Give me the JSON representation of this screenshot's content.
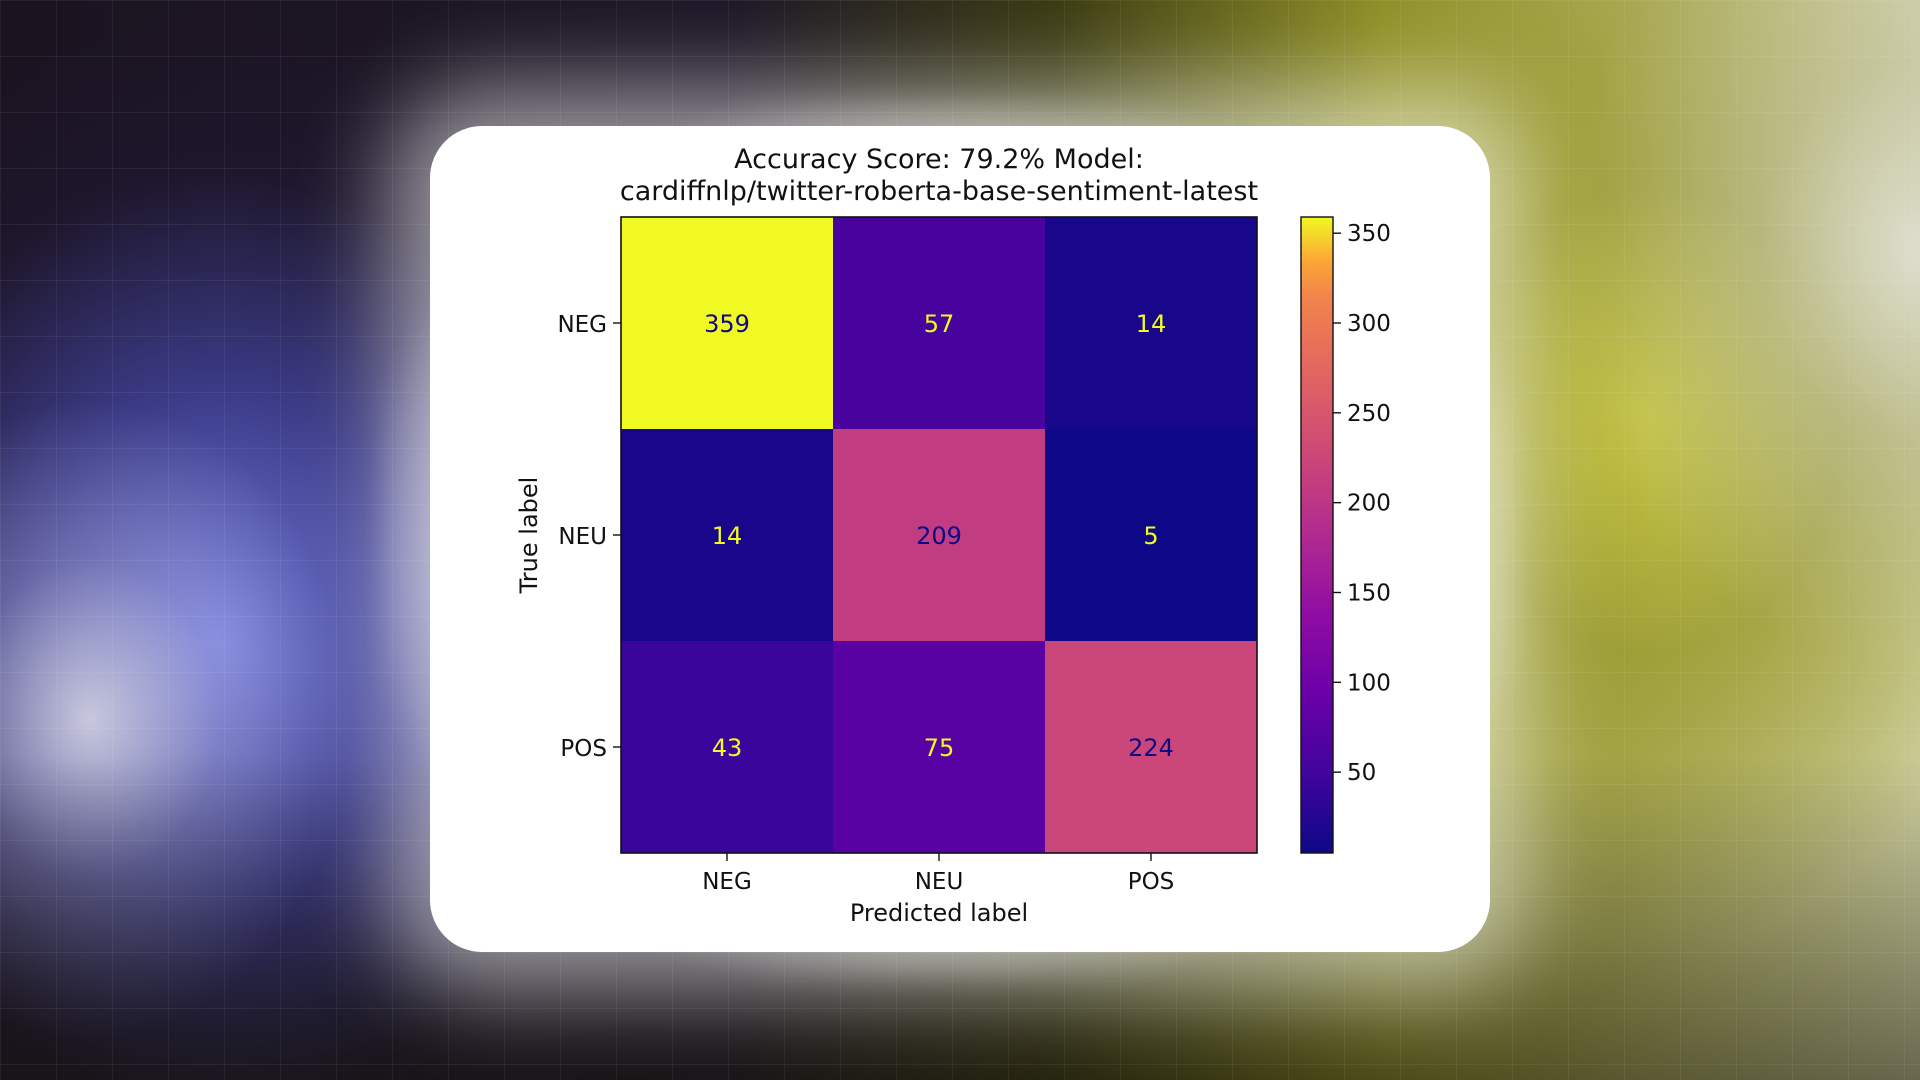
{
  "chart_data": {
    "type": "heatmap",
    "title_lines": [
      "Accuracy Score: 79.2% Model:",
      "cardiffnlp/twitter-roberta-base-sentiment-latest"
    ],
    "xlabel": "Predicted label",
    "ylabel": "True label",
    "x_categories": [
      "NEG",
      "NEU",
      "POS"
    ],
    "y_categories": [
      "NEG",
      "NEU",
      "POS"
    ],
    "matrix": [
      [
        359,
        57,
        14
      ],
      [
        14,
        209,
        5
      ],
      [
        43,
        75,
        224
      ]
    ],
    "colormap": "plasma",
    "value_range": [
      5,
      359
    ],
    "colorbar_ticks": [
      350,
      300,
      250,
      200,
      150,
      100,
      50
    ],
    "text_color_light": "#f0f921",
    "text_color_dark": "#0d0887"
  }
}
